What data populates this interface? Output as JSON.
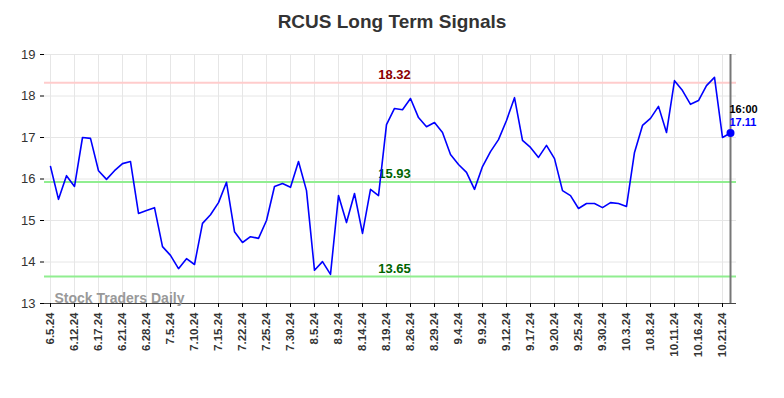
{
  "chart_data": {
    "type": "line",
    "title": "RCUS Long Term Signals",
    "color": "#0000ff",
    "grid": true,
    "ylim": [
      13,
      19
    ],
    "yticks": [
      13,
      14,
      15,
      16,
      17,
      18,
      19
    ],
    "categories": [
      "6.5.24",
      null,
      null,
      "6.12.24",
      null,
      null,
      "6.17.24",
      null,
      null,
      "6.21.24",
      null,
      null,
      "6.28.24",
      null,
      null,
      "7.5.24",
      null,
      null,
      "7.10.24",
      null,
      null,
      "7.15.24",
      null,
      null,
      "7.22.24",
      null,
      null,
      "7.25.24",
      null,
      null,
      "7.30.24",
      null,
      null,
      "8.5.24",
      null,
      null,
      "8.9.24",
      null,
      null,
      "8.14.24",
      null,
      null,
      "8.19.24",
      null,
      null,
      "8.26.24",
      null,
      null,
      "8.29.24",
      null,
      null,
      "9.4.24",
      null,
      null,
      "9.9.24",
      null,
      null,
      "9.12.24",
      null,
      null,
      "9.17.24",
      null,
      null,
      "9.20.24",
      null,
      null,
      "9.25.24",
      null,
      null,
      "9.30.24",
      null,
      null,
      "10.3.24",
      null,
      null,
      "10.8.24",
      null,
      null,
      "10.11.24",
      null,
      null,
      "10.16.24",
      null,
      null,
      "10.21.24",
      null
    ],
    "values": [
      16.3,
      15.51,
      16.08,
      15.82,
      17.0,
      16.98,
      16.2,
      15.99,
      16.2,
      16.37,
      16.42,
      15.17,
      15.24,
      15.31,
      14.37,
      14.16,
      13.84,
      14.08,
      13.94,
      14.93,
      15.14,
      15.43,
      15.92,
      14.73,
      14.47,
      14.61,
      14.57,
      15.0,
      15.82,
      15.89,
      15.8,
      16.42,
      15.72,
      13.8,
      14.01,
      13.7,
      15.6,
      14.95,
      15.65,
      14.69,
      15.75,
      15.6,
      17.31,
      17.7,
      17.67,
      17.94,
      17.48,
      17.26,
      17.36,
      17.12,
      16.59,
      16.35,
      16.16,
      15.75,
      16.3,
      16.66,
      16.95,
      17.41,
      17.96,
      16.93,
      16.76,
      16.52,
      16.81,
      16.49,
      15.72,
      15.6,
      15.29,
      15.41,
      15.41,
      15.31,
      15.43,
      15.41,
      15.34,
      16.64,
      17.29,
      17.46,
      17.75,
      17.12,
      18.37,
      18.13,
      17.8,
      17.89,
      18.25,
      18.45,
      17.0,
      17.11
    ],
    "levels": [
      {
        "value": 18.32,
        "color": "#ffcccc"
      },
      {
        "value": 15.93,
        "color": "#90ee90"
      },
      {
        "value": 13.65,
        "color": "#90ee90"
      }
    ],
    "last_time": "16:00",
    "watermark": "Stock Traders Daily"
  }
}
